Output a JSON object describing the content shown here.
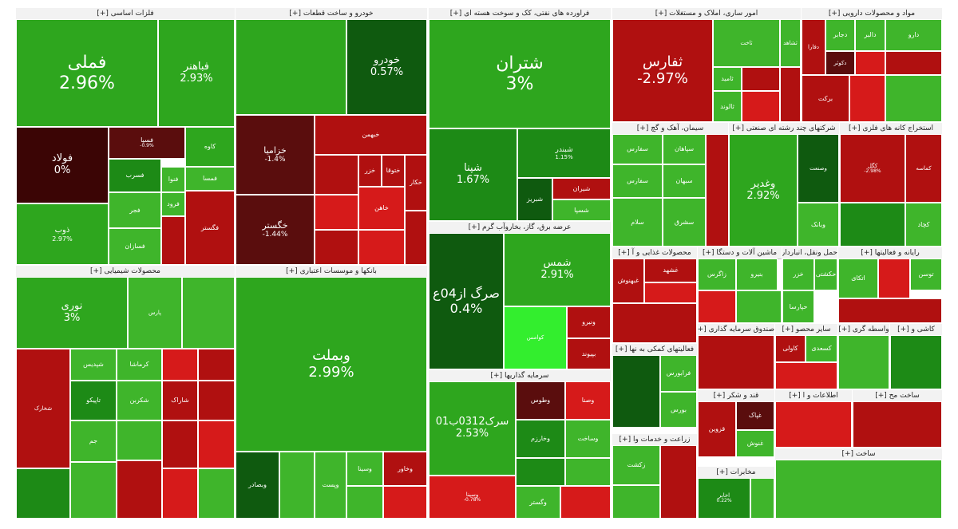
{
  "colors": {
    "g1": "#2ea61e",
    "g2": "#3fb52b",
    "g3": "#1d8a16",
    "g4": "#0f5a0f",
    "lime": "#33ee2e",
    "r1": "#b01010",
    "r2": "#d61a1a",
    "r3": "#5a0d0d",
    "r4": "#3b0505"
  },
  "sectors": [
    {
      "id": "sec-basic-metals",
      "title": "فلزات اساسی [+]"
    },
    {
      "id": "sec-auto",
      "title": "خودرو و ساخت قطعات [+]"
    },
    {
      "id": "sec-oil",
      "title": "فراورده های نفتی، کک و سوخت هسته ای [+]"
    },
    {
      "id": "sec-multi",
      "title": "امور ساری، املاک و مستغلات [+]"
    },
    {
      "id": "sec-pharma",
      "title": "مواد و محصولات دارویی [+]"
    },
    {
      "id": "sec-chem",
      "title": "محصولات شیمیایی [+]"
    },
    {
      "id": "sec-banks",
      "title": "بانکها و موسسات اعتباری [+]"
    },
    {
      "id": "sec-power",
      "title": "عرضه برق، گاز، بخاروآب گرم [+]"
    },
    {
      "id": "sec-invest",
      "title": "سرمایه گذاریها [+]"
    },
    {
      "id": "sec-cement",
      "title": "سیمان، آهک و گچ [+]"
    },
    {
      "id": "sec-holding",
      "title": "شرکتهای چند رشته ای صنعتی [+]"
    },
    {
      "id": "sec-mining",
      "title": "استخراج کانه های فلزی [+]"
    },
    {
      "id": "sec-food",
      "title": "محصولات غذایی و آ [+]"
    },
    {
      "id": "sec-machinery",
      "title": "ماشین آلات و دستگا [+]"
    },
    {
      "id": "sec-transport",
      "title": "حمل ونقل، انبارداری [+]"
    },
    {
      "id": "sec-rayaneh",
      "title": "رایانه و فعالیتها [+]"
    },
    {
      "id": "sec-fund",
      "title": "صندوق سرمایه گذاری [+]"
    },
    {
      "id": "sec-nonmetal",
      "title": "سایر محصو [+]"
    },
    {
      "id": "sec-finance",
      "title": "واسطه گری [+]"
    },
    {
      "id": "sec-tiles",
      "title": "کاشی و [+]"
    },
    {
      "id": "sec-services",
      "title": "فعالیتهای کمکی به نها [+]"
    },
    {
      "id": "sec-sugar",
      "title": "قند و شکر [+]"
    },
    {
      "id": "sec-agri",
      "title": "زراعت و خدمات وا [+]"
    },
    {
      "id": "sec-telecom",
      "title": "مخابرات [+]"
    },
    {
      "id": "sec-info",
      "title": "اطلاعات و ا [+]"
    },
    {
      "id": "sec-small",
      "title": "ساخت مح [+]"
    },
    {
      "id": "sec-electric",
      "title": "ساخت [+]"
    }
  ],
  "tiles": [
    {
      "id": "fameli",
      "symbol": "فملی",
      "pct": "2.96%",
      "color": "g1"
    },
    {
      "id": "fakhoz",
      "symbol": "فباهنر",
      "pct": "2.93%",
      "color": "g1"
    },
    {
      "id": "foolad",
      "symbol": "فولاد",
      "pct": "0%",
      "color": "r4"
    },
    {
      "id": "fesepa",
      "symbol": "فسپا",
      "pct": "-0.9%",
      "color": "r3"
    },
    {
      "id": "kaveh",
      "symbol": "کاوه",
      "pct": "",
      "color": "g1"
    },
    {
      "id": "fanvaz",
      "symbol": "فنوا",
      "pct": "",
      "color": "g2"
    },
    {
      "id": "fesool",
      "symbol": "فسرب",
      "pct": "",
      "color": "g3"
    },
    {
      "id": "famasa",
      "symbol": "فمسا",
      "pct": "",
      "color": "g2"
    },
    {
      "id": "zoob",
      "symbol": "ذوب",
      "pct": "2.97%",
      "color": "g1"
    },
    {
      "id": "fajr",
      "symbol": "فجر",
      "pct": "",
      "color": "g2"
    },
    {
      "id": "feroor",
      "symbol": "فرود",
      "pct": "",
      "color": "g2"
    },
    {
      "id": "faspadana",
      "symbol": "فسازان",
      "pct": "",
      "color": "g2"
    },
    {
      "id": "fgostar",
      "symbol": "فگستر",
      "pct": "",
      "color": "r1"
    },
    {
      "id": "khodro",
      "symbol": "خودرو",
      "pct": "0.57%",
      "color": "g4"
    },
    {
      "id": "khabahman",
      "symbol": "خبهمن",
      "pct": "",
      "color": "r1"
    },
    {
      "id": "khegostar",
      "symbol": "خگستر",
      "pct": "-1.44%",
      "color": "r3"
    },
    {
      "id": "khezamia",
      "symbol": "خزامیا",
      "pct": "-1.4%",
      "color": "r3"
    },
    {
      "id": "khekar",
      "symbol": "خکار",
      "pct": "",
      "color": "r1"
    },
    {
      "id": "khezar",
      "symbol": "خزر",
      "pct": "",
      "color": "r1"
    },
    {
      "id": "khetoos",
      "symbol": "ختوقا",
      "pct": "",
      "color": "r1"
    },
    {
      "id": "khakhla",
      "symbol": "خاهن",
      "pct": "",
      "color": "r2"
    },
    {
      "id": "shetran",
      "symbol": "شتران",
      "pct": "3%",
      "color": "g1"
    },
    {
      "id": "shebandar",
      "symbol": "شبندر",
      "pct": "1.15%",
      "color": "g3"
    },
    {
      "id": "shena",
      "symbol": "شپنا",
      "pct": "1.67%",
      "color": "g3"
    },
    {
      "id": "shetabriz",
      "symbol": "شبریز",
      "pct": "",
      "color": "g4"
    },
    {
      "id": "sheiran",
      "symbol": "شیران",
      "pct": "",
      "color": "r1"
    },
    {
      "id": "shesepa",
      "symbol": "شسپا",
      "pct": "",
      "color": "g2"
    },
    {
      "id": "thefars",
      "symbol": "ثفارس",
      "pct": "-2.97%",
      "color": "r1"
    },
    {
      "id": "thakhas",
      "symbol": "ثاخت",
      "pct": "",
      "color": "g2"
    },
    {
      "id": "theshahed",
      "symbol": "ثشاهد",
      "pct": "",
      "color": "g2"
    },
    {
      "id": "thetavan",
      "symbol": "ثالوند",
      "pct": "",
      "color": "g2"
    },
    {
      "id": "thaned",
      "symbol": "ثامید",
      "pct": "",
      "color": "g2"
    },
    {
      "id": "daroo",
      "symbol": "دارو",
      "pct": "",
      "color": "g2"
    },
    {
      "id": "dalor",
      "symbol": "دالبر",
      "pct": "",
      "color": "g2"
    },
    {
      "id": "dajaber",
      "symbol": "دجابر",
      "pct": "",
      "color": "g2"
    },
    {
      "id": "dabidar",
      "symbol": "دفارا",
      "pct": "",
      "color": "r1"
    },
    {
      "id": "barkat",
      "symbol": "برکت",
      "pct": "",
      "color": "r1"
    },
    {
      "id": "dakosar",
      "symbol": "دکوثر",
      "pct": "",
      "color": "r3"
    },
    {
      "id": "noori",
      "symbol": "نوری",
      "pct": "3%",
      "color": "g1"
    },
    {
      "id": "pamidi",
      "symbol": "پارس",
      "pct": "",
      "color": "g2"
    },
    {
      "id": "jam",
      "symbol": "جم",
      "pct": "",
      "color": "g2"
    },
    {
      "id": "shekhaz",
      "symbol": "شخارک",
      "pct": "",
      "color": "r1"
    },
    {
      "id": "shekarbon",
      "symbol": "شکربن",
      "pct": "",
      "color": "g2"
    },
    {
      "id": "shepdis",
      "symbol": "شپدیس",
      "pct": "",
      "color": "g2"
    },
    {
      "id": "karkana",
      "symbol": "کرماشا",
      "pct": "",
      "color": "g2"
    },
    {
      "id": "nakoko",
      "symbol": "تاپیکو",
      "pct": "",
      "color": "g3"
    },
    {
      "id": "darvin",
      "symbol": "شاراک",
      "pct": "",
      "color": "r1"
    },
    {
      "id": "vebmellat",
      "symbol": "وبملت",
      "pct": "2.99%",
      "color": "g1"
    },
    {
      "id": "vesina",
      "symbol": "وسینا",
      "pct": "",
      "color": "g2"
    },
    {
      "id": "vekhavar",
      "symbol": "وخاور",
      "pct": "",
      "color": "r1"
    },
    {
      "id": "vepost",
      "symbol": "وپست",
      "pct": "",
      "color": "g2"
    },
    {
      "id": "vebsader",
      "symbol": "وبصادر",
      "pct": "",
      "color": "g4"
    },
    {
      "id": "sargaz",
      "symbol": "صرگ از04ع",
      "pct": "0.4%",
      "color": "g4"
    },
    {
      "id": "shames",
      "symbol": "شمس",
      "pct": "2.91%",
      "color": "g1"
    },
    {
      "id": "vinro",
      "symbol": "ونیرو",
      "pct": "",
      "color": "r1"
    },
    {
      "id": "kodash",
      "symbol": "کوامس",
      "pct": "",
      "color": "lime"
    },
    {
      "id": "beta",
      "symbol": "بپیوند",
      "pct": "",
      "color": "r1"
    },
    {
      "id": "sarak",
      "symbol": "سرک0312ب01",
      "pct": "2.53%",
      "color": "g1"
    },
    {
      "id": "vasheto",
      "symbol": "وسینا",
      "pct": "-0.78%",
      "color": "r2"
    },
    {
      "id": "vataban",
      "symbol": "وطوس",
      "pct": "",
      "color": "r3"
    },
    {
      "id": "vsakht",
      "symbol": "وصنا",
      "pct": "",
      "color": "r2"
    },
    {
      "id": "vkharazm",
      "symbol": "وخارزم",
      "pct": "",
      "color": "g3"
    },
    {
      "id": "vasakht",
      "symbol": "وساخت",
      "pct": "",
      "color": "g2"
    },
    {
      "id": "vegosar",
      "symbol": "وگستر",
      "pct": "",
      "color": "g2"
    },
    {
      "id": "saroud",
      "symbol": "سفارس",
      "pct": "",
      "color": "g2"
    },
    {
      "id": "sepahan",
      "symbol": "سپاهان",
      "pct": "",
      "color": "g2"
    },
    {
      "id": "sefaruz",
      "symbol": "سفارس",
      "pct": "",
      "color": "g2"
    },
    {
      "id": "sabhan",
      "symbol": "سبهان",
      "pct": "",
      "color": "g2"
    },
    {
      "id": "selam",
      "symbol": "سلام",
      "pct": "",
      "color": "g2"
    },
    {
      "id": "seshargh",
      "symbol": "سشرق",
      "pct": "",
      "color": "g2"
    },
    {
      "id": "vaghadir",
      "symbol": "وغدیر",
      "pct": "2.92%",
      "color": "g1"
    },
    {
      "id": "vasiaz",
      "symbol": "وصنعت",
      "pct": "",
      "color": "g4"
    },
    {
      "id": "vbanik",
      "symbol": "وبانک",
      "pct": "",
      "color": "g2"
    },
    {
      "id": "kegol",
      "symbol": "کگل",
      "pct": "-2.98%",
      "color": "r1"
    },
    {
      "id": "kechad",
      "symbol": "کچاد",
      "pct": "",
      "color": "g2"
    },
    {
      "id": "kemanga",
      "symbol": "کماسه",
      "pct": "",
      "color": "r1"
    },
    {
      "id": "ghebahan",
      "symbol": "غبهنوش",
      "pct": "",
      "color": "r1"
    },
    {
      "id": "gheshahd",
      "symbol": "غشهد",
      "pct": "",
      "color": "r1"
    },
    {
      "id": "khazar",
      "symbol": "خزر",
      "pct": "",
      "color": "g2"
    },
    {
      "id": "hakeshti",
      "symbol": "حکشتی",
      "pct": "",
      "color": "g2"
    },
    {
      "id": "haparsa",
      "symbol": "حپارسا",
      "pct": "",
      "color": "g2"
    },
    {
      "id": "tapico",
      "symbol": "توسن",
      "pct": "",
      "color": "g2"
    },
    {
      "id": "atlas",
      "symbol": "اتکای",
      "pct": "",
      "color": "g2"
    },
    {
      "id": "zagros",
      "symbol": "زاگرس",
      "pct": "",
      "color": "g2"
    },
    {
      "id": "faraboors",
      "symbol": "فرابورس",
      "pct": "",
      "color": "g2"
    },
    {
      "id": "boors",
      "symbol": "بورس",
      "pct": "",
      "color": "g2"
    },
    {
      "id": "ghezahan",
      "symbol": "قزوین",
      "pct": "",
      "color": "r1"
    },
    {
      "id": "rekasht",
      "symbol": "زکشت",
      "pct": "",
      "color": "g2"
    },
    {
      "id": "akhaber",
      "symbol": "اخابر",
      "pct": "0.22%",
      "color": "g3"
    },
    {
      "id": "kaveli",
      "symbol": "کاولی",
      "pct": "",
      "color": "r1"
    },
    {
      "id": "kesadid",
      "symbol": "کسعدی",
      "pct": "",
      "color": "g2"
    },
    {
      "id": "bamapna",
      "symbol": "بنیرو",
      "pct": "",
      "color": "g2"
    },
    {
      "id": "ghebakht",
      "symbol": "غپاک",
      "pct": "",
      "color": "r3"
    },
    {
      "id": "ghenosh",
      "symbol": "غنوش",
      "pct": "",
      "color": "g2"
    }
  ]
}
